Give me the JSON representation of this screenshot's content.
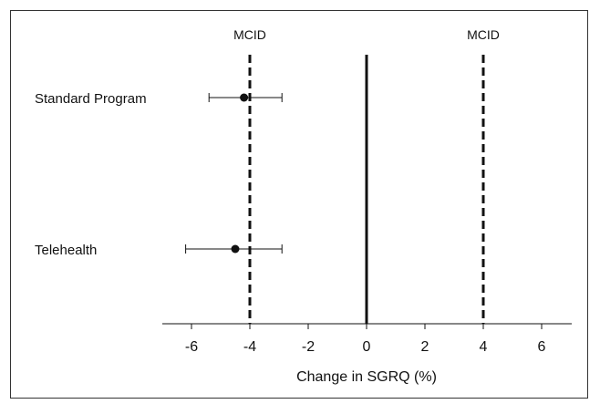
{
  "chart_data": {
    "type": "forest",
    "xlabel": "Change in SGRQ (%)",
    "xlim": [
      -7,
      7
    ],
    "xticks": [
      -6,
      -4,
      -2,
      0,
      2,
      4,
      6
    ],
    "reference_lines": [
      {
        "x": -4,
        "style": "dashed",
        "label": "MCID"
      },
      {
        "x": 0,
        "style": "solid",
        "label": ""
      },
      {
        "x": 4,
        "style": "dashed",
        "label": "MCID"
      }
    ],
    "series": [
      {
        "name": "Standard Program",
        "estimate": -4.2,
        "ci_low": -5.4,
        "ci_high": -2.9
      },
      {
        "name": "Telehealth",
        "estimate": -4.5,
        "ci_low": -6.2,
        "ci_high": -2.9
      }
    ],
    "grid": false,
    "legend": "none"
  },
  "colors": {
    "ink": "#111111"
  }
}
